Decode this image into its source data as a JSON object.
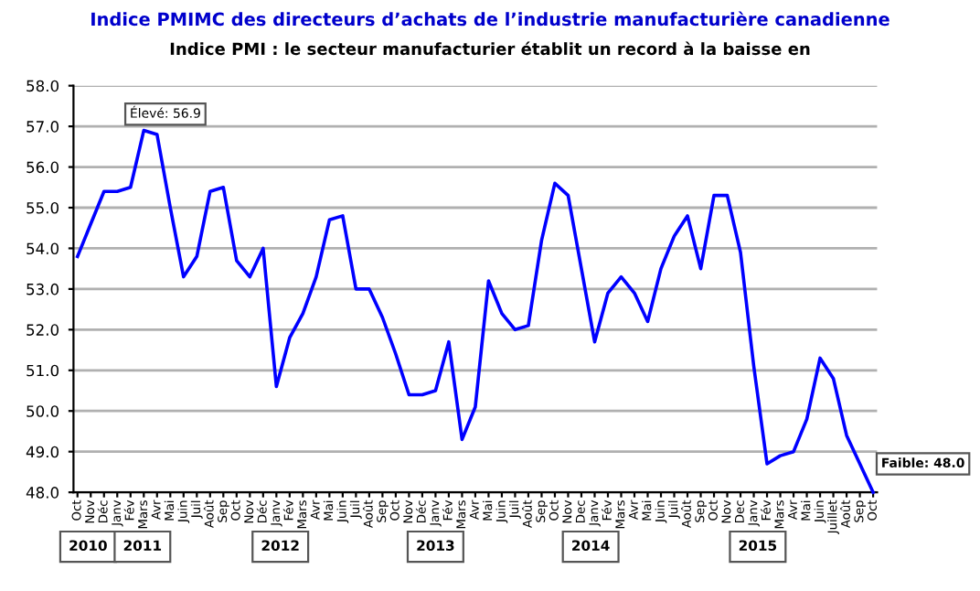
{
  "chart_data": {
    "type": "line",
    "title": "Indice PMIMC des directeurs d’achats de l’industrie manufacturière canadienne",
    "subtitle": "Indice PMI : le secteur manufacturier établit un record à la baisse en",
    "categories": [
      "Oct",
      "Nov",
      "Déc",
      "Janv",
      "Fév",
      "Mars",
      "Avr",
      "Mai",
      "Juin",
      "Juil",
      "Août",
      "Sep",
      "Oct",
      "Nov",
      "Déc",
      "Janv",
      "Fév",
      "Mars",
      "Avr",
      "Mai",
      "Juin",
      "Juil",
      "Août",
      "Sep",
      "Oct",
      "Nov",
      "Déc",
      "Janv",
      "Fév",
      "Mars",
      "Avr",
      "Mai",
      "Juin",
      "Juil",
      "Août",
      "Sep",
      "Oct",
      "Nov",
      "Dec",
      "Janv",
      "Fév",
      "Mars",
      "Avr",
      "Mai",
      "Juin",
      "Juil",
      "Août",
      "Sep",
      "Oct",
      "Nov",
      "Dec",
      "Janv",
      "Fév",
      "Mars",
      "Avr",
      "Mai",
      "Juin",
      "Juillet",
      "Août",
      "Sep",
      "Oct"
    ],
    "series": [
      {
        "color": "#0000ff",
        "values": [
          53.8,
          54.6,
          55.4,
          55.4,
          55.5,
          56.9,
          56.8,
          55.0,
          53.3,
          53.8,
          55.4,
          55.5,
          53.7,
          53.3,
          54.0,
          50.6,
          51.8,
          52.4,
          53.3,
          54.7,
          54.8,
          53.0,
          53.0,
          52.3,
          51.4,
          50.4,
          50.4,
          50.5,
          51.7,
          49.3,
          50.1,
          53.2,
          52.4,
          52.0,
          52.1,
          54.2,
          55.6,
          55.3,
          53.5,
          51.7,
          52.9,
          53.3,
          52.9,
          52.2,
          53.5,
          54.3,
          54.8,
          53.5,
          55.3,
          55.3,
          53.9,
          51.1,
          48.7,
          48.9,
          49.0,
          49.8,
          51.3,
          50.8,
          49.4,
          48.7,
          48.0
        ]
      }
    ],
    "ylim": [
      48,
      58
    ],
    "yticks": [
      {
        "value": 48,
        "label": "48.0"
      },
      {
        "value": 49,
        "label": "49.0"
      },
      {
        "value": 50,
        "label": "50.0"
      },
      {
        "value": 51,
        "label": "51.0"
      },
      {
        "value": 52,
        "label": "52.0"
      },
      {
        "value": 53,
        "label": "53.0"
      },
      {
        "value": 54,
        "label": "54.0"
      },
      {
        "value": 55,
        "label": "55.0"
      },
      {
        "value": 56,
        "label": "56.0"
      },
      {
        "value": 57,
        "label": "57.0"
      },
      {
        "value": 58,
        "label": "58.0"
      }
    ],
    "grid": "y",
    "legend": false,
    "marker": "none",
    "line_style": "solid",
    "annotations": [
      "Élevé: 56.9",
      "Faible: 48.0",
      "2010",
      "2011",
      "2012",
      "2013",
      "2014",
      "2015"
    ]
  }
}
